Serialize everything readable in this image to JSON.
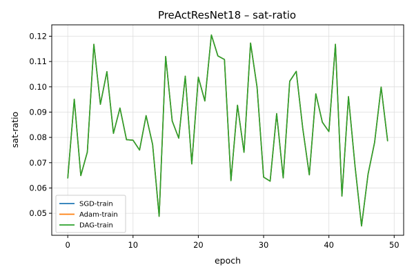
{
  "chart_data": {
    "type": "line",
    "title": "PreActResNet18 – sat-ratio",
    "xlabel": "epoch",
    "ylabel": "sat-ratio",
    "xlim": [
      -2.45,
      51.45
    ],
    "ylim": [
      0.0413,
      0.1245
    ],
    "xticks": [
      0,
      10,
      20,
      30,
      40,
      50
    ],
    "yticks": [
      0.05,
      0.06,
      0.07,
      0.08,
      0.09,
      0.1,
      0.11,
      0.12
    ],
    "grid": true,
    "legend": {
      "position": "lower-left"
    },
    "x": [
      0,
      1,
      2,
      3,
      4,
      5,
      6,
      7,
      8,
      9,
      10,
      11,
      12,
      13,
      14,
      15,
      16,
      17,
      18,
      19,
      20,
      21,
      22,
      23,
      24,
      25,
      26,
      27,
      28,
      29,
      30,
      31,
      32,
      33,
      34,
      35,
      36,
      37,
      38,
      39,
      40,
      41,
      42,
      43,
      44,
      45,
      46,
      47,
      48,
      49
    ],
    "series": [
      {
        "name": "SGD-train",
        "color": "#1f77b4",
        "values": [
          0.0638,
          0.0951,
          0.0649,
          0.0742,
          0.1168,
          0.0931,
          0.106,
          0.0816,
          0.0916,
          0.0791,
          0.0789,
          0.075,
          0.0886,
          0.0772,
          0.0488,
          0.112,
          0.0865,
          0.0797,
          0.1042,
          0.0695,
          0.1038,
          0.0944,
          0.1205,
          0.1122,
          0.1108,
          0.0629,
          0.0927,
          0.0741,
          0.1173,
          0.0998,
          0.0643,
          0.0627,
          0.0894,
          0.064,
          0.1022,
          0.1061,
          0.0835,
          0.0652,
          0.0972,
          0.086,
          0.0823,
          0.1168,
          0.0568,
          0.0961,
          0.0687,
          0.045,
          0.0655,
          0.078,
          0.0999,
          0.0785
        ]
      },
      {
        "name": "Adam-train",
        "color": "#ff7f0e",
        "values": [
          0.0638,
          0.0951,
          0.0649,
          0.0742,
          0.1168,
          0.0931,
          0.106,
          0.0816,
          0.0916,
          0.0791,
          0.0789,
          0.075,
          0.0886,
          0.0772,
          0.0488,
          0.112,
          0.0865,
          0.0797,
          0.1042,
          0.0695,
          0.1038,
          0.0944,
          0.1205,
          0.1122,
          0.1108,
          0.0629,
          0.0927,
          0.0741,
          0.1173,
          0.0998,
          0.0643,
          0.0627,
          0.0894,
          0.064,
          0.1022,
          0.1061,
          0.0835,
          0.0652,
          0.0972,
          0.086,
          0.0823,
          0.1168,
          0.0568,
          0.0961,
          0.0687,
          0.045,
          0.0655,
          0.078,
          0.0999,
          0.0785
        ]
      },
      {
        "name": "DAG-train",
        "color": "#2ca02c",
        "values": [
          0.0638,
          0.0951,
          0.0649,
          0.0742,
          0.1168,
          0.0931,
          0.106,
          0.0816,
          0.0916,
          0.0791,
          0.0789,
          0.075,
          0.0886,
          0.0772,
          0.0488,
          0.112,
          0.0865,
          0.0797,
          0.1042,
          0.0695,
          0.1038,
          0.0944,
          0.1205,
          0.1122,
          0.1108,
          0.0629,
          0.0927,
          0.0741,
          0.1173,
          0.0998,
          0.0643,
          0.0627,
          0.0894,
          0.064,
          0.1022,
          0.1061,
          0.0835,
          0.0652,
          0.0972,
          0.086,
          0.0823,
          0.1168,
          0.0568,
          0.0961,
          0.0687,
          0.045,
          0.0655,
          0.078,
          0.0999,
          0.0785
        ]
      }
    ]
  }
}
